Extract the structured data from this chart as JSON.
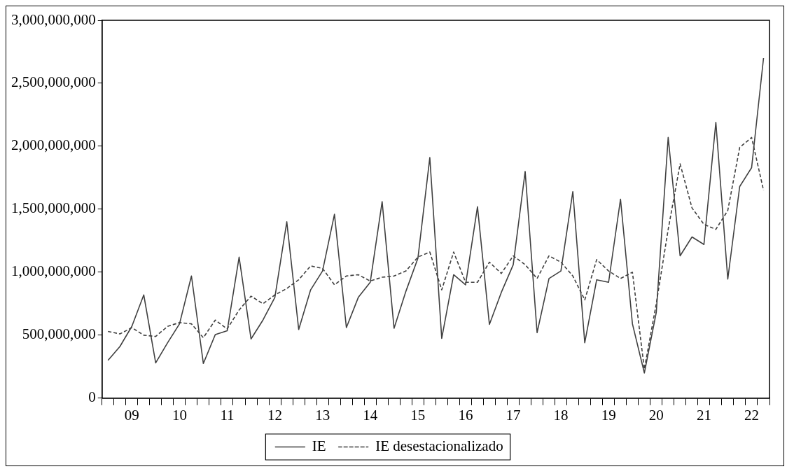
{
  "chart_data": {
    "type": "line",
    "categories": [
      null,
      null,
      "09",
      null,
      null,
      null,
      "10",
      null,
      null,
      null,
      "11",
      null,
      null,
      null,
      "12",
      null,
      null,
      null,
      "13",
      null,
      null,
      null,
      "14",
      null,
      null,
      null,
      "15",
      null,
      null,
      null,
      "16",
      null,
      null,
      null,
      "17",
      null,
      null,
      null,
      "18",
      null,
      null,
      null,
      "19",
      null,
      null,
      null,
      "20",
      null,
      null,
      null,
      "21",
      null,
      null,
      null,
      "22",
      null
    ],
    "series": [
      {
        "name": "IE",
        "color": "#404040",
        "line_style": "solid",
        "values": [
          300000000,
          410000000,
          570000000,
          820000000,
          280000000,
          440000000,
          590000000,
          970000000,
          275000000,
          505000000,
          535000000,
          1120000000,
          470000000,
          620000000,
          800000000,
          1400000000,
          545000000,
          860000000,
          1010000000,
          1460000000,
          560000000,
          800000000,
          920000000,
          1560000000,
          555000000,
          850000000,
          1110000000,
          1910000000,
          475000000,
          980000000,
          900000000,
          1520000000,
          585000000,
          840000000,
          1060000000,
          1800000000,
          520000000,
          950000000,
          1010000000,
          1640000000,
          440000000,
          940000000,
          920000000,
          1580000000,
          590000000,
          200000000,
          680000000,
          2070000000,
          1130000000,
          1280000000,
          1220000000,
          2190000000,
          945000000,
          1680000000,
          1830000000,
          2700000000
        ]
      },
      {
        "name": "IE desestacionalizado",
        "color": "#404040",
        "line_style": "dashed",
        "values": [
          530000000,
          510000000,
          560000000,
          500000000,
          490000000,
          570000000,
          600000000,
          590000000,
          480000000,
          620000000,
          550000000,
          700000000,
          810000000,
          750000000,
          820000000,
          870000000,
          940000000,
          1050000000,
          1030000000,
          900000000,
          970000000,
          980000000,
          930000000,
          960000000,
          970000000,
          1010000000,
          1120000000,
          1160000000,
          860000000,
          1160000000,
          920000000,
          920000000,
          1080000000,
          990000000,
          1130000000,
          1060000000,
          950000000,
          1130000000,
          1080000000,
          970000000,
          780000000,
          1100000000,
          1010000000,
          950000000,
          1000000000,
          230000000,
          750000000,
          1340000000,
          1860000000,
          1510000000,
          1380000000,
          1340000000,
          1490000000,
          1990000000,
          2070000000,
          1650000000
        ]
      }
    ],
    "ylim": [
      0,
      3000000000
    ],
    "yticks": [
      {
        "value": 0,
        "label": "0"
      },
      {
        "value": 500000000,
        "label": "500,000,000"
      },
      {
        "value": 1000000000,
        "label": "1,000,000,000"
      },
      {
        "value": 1500000000,
        "label": "1,500,000,000"
      },
      {
        "value": 2000000000,
        "label": "2,000,000,000"
      },
      {
        "value": 2500000000,
        "label": "2,500,000,000"
      },
      {
        "value": 3000000000,
        "label": "3,000,000,000"
      }
    ],
    "grid": false,
    "legend": "bottom",
    "marker": "none"
  }
}
